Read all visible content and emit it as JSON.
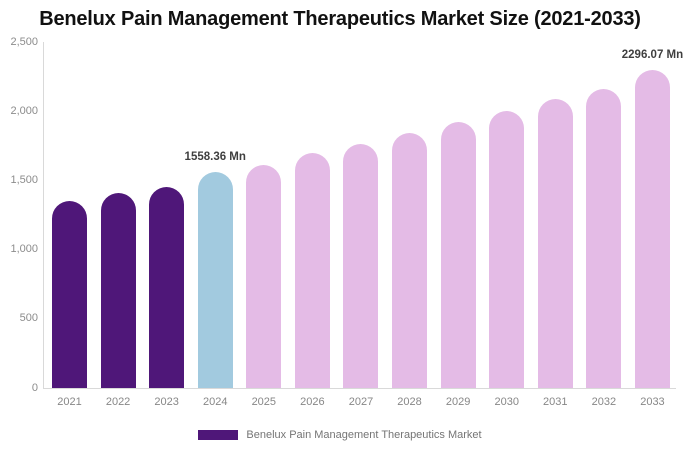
{
  "chart_data": {
    "type": "bar",
    "title": "Benelux Pain Management Therapeutics Market Size (2021-2033)",
    "unit": "Mn",
    "categories": [
      "2021",
      "2022",
      "2023",
      "2024",
      "2025",
      "2026",
      "2027",
      "2028",
      "2029",
      "2030",
      "2031",
      "2032",
      "2033"
    ],
    "series": [
      {
        "name": "Benelux Pain Management Therapeutics Market",
        "values": [
          1350,
          1410,
          1455,
          1558.36,
          1610,
          1695,
          1765,
          1840,
          1925,
          2005,
          2085,
          2160,
          2296.07
        ]
      }
    ],
    "bar_segments": [
      "past",
      "past",
      "past",
      "current",
      "forecast",
      "forecast",
      "forecast",
      "forecast",
      "forecast",
      "forecast",
      "forecast",
      "forecast",
      "forecast"
    ],
    "segment_colors": {
      "past": "#4F1779",
      "current": "#A2CADF",
      "forecast": "#E4BBE6"
    },
    "annotations": [
      {
        "category": "2024",
        "index": 3,
        "text": "1558.36 Mn"
      },
      {
        "category": "2033",
        "index": 12,
        "text": "2296.07 Mn"
      }
    ],
    "ylim": [
      0,
      2500
    ],
    "yticks": {
      "values": [
        2500,
        2000,
        1500,
        1000,
        500,
        0
      ],
      "labels": [
        "2,500",
        "2,000",
        "1,500",
        "1,000",
        "500",
        "0"
      ]
    },
    "grid": false,
    "legend_position": "bottom",
    "legend": [
      {
        "label": "Benelux Pain Management Therapeutics Market",
        "color": "#4F1779"
      }
    ],
    "axis_color": "#d9d9d9",
    "tick_label_color": "#8c8c8c"
  }
}
